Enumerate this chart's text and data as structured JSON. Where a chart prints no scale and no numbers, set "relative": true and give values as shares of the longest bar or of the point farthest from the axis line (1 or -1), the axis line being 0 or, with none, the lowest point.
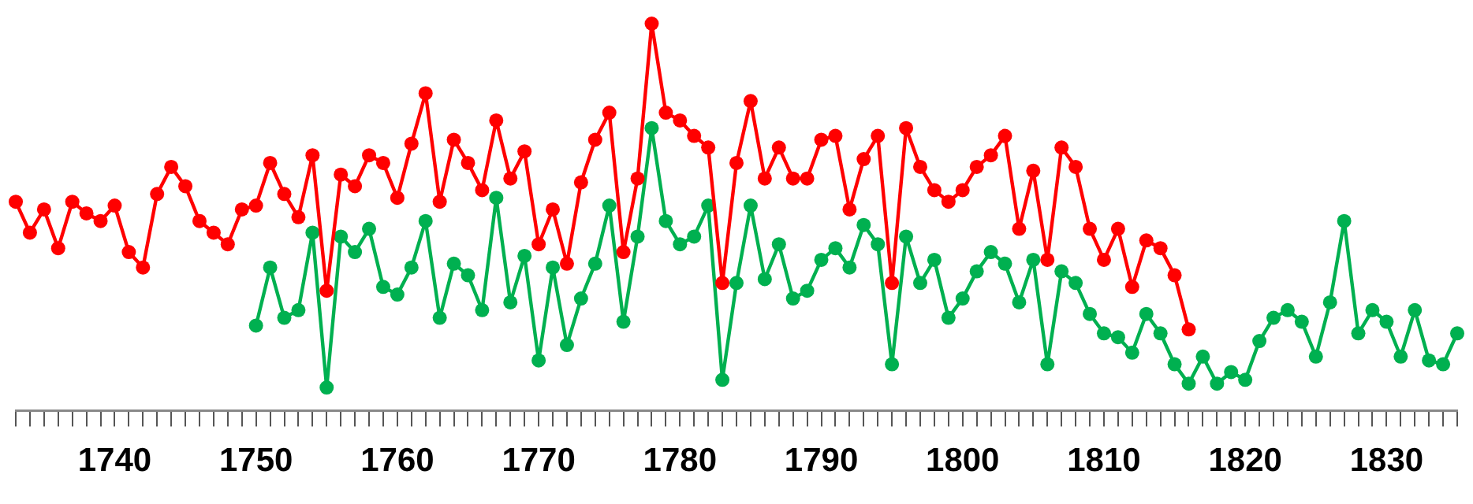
{
  "chart_data": {
    "type": "line",
    "relative": true,
    "marker": "circle",
    "grid": false,
    "legend": false,
    "xlim": [
      1733,
      1835
    ],
    "xticks": [
      {
        "value": 1733,
        "label": null
      },
      {
        "value": 1734,
        "label": null
      },
      {
        "value": 1735,
        "label": null
      },
      {
        "value": 1736,
        "label": null
      },
      {
        "value": 1737,
        "label": null
      },
      {
        "value": 1738,
        "label": null
      },
      {
        "value": 1739,
        "label": null
      },
      1740,
      {
        "value": 1741,
        "label": null
      },
      {
        "value": 1742,
        "label": null
      },
      {
        "value": 1743,
        "label": null
      },
      {
        "value": 1744,
        "label": null
      },
      {
        "value": 1745,
        "label": null
      },
      {
        "value": 1746,
        "label": null
      },
      {
        "value": 1747,
        "label": null
      },
      {
        "value": 1748,
        "label": null
      },
      {
        "value": 1749,
        "label": null
      },
      1750,
      {
        "value": 1751,
        "label": null
      },
      {
        "value": 1752,
        "label": null
      },
      {
        "value": 1753,
        "label": null
      },
      {
        "value": 1754,
        "label": null
      },
      {
        "value": 1755,
        "label": null
      },
      {
        "value": 1756,
        "label": null
      },
      {
        "value": 1757,
        "label": null
      },
      {
        "value": 1758,
        "label": null
      },
      {
        "value": 1759,
        "label": null
      },
      1760,
      {
        "value": 1761,
        "label": null
      },
      {
        "value": 1762,
        "label": null
      },
      {
        "value": 1763,
        "label": null
      },
      {
        "value": 1764,
        "label": null
      },
      {
        "value": 1765,
        "label": null
      },
      {
        "value": 1766,
        "label": null
      },
      {
        "value": 1767,
        "label": null
      },
      {
        "value": 1768,
        "label": null
      },
      {
        "value": 1769,
        "label": null
      },
      1770,
      {
        "value": 1771,
        "label": null
      },
      {
        "value": 1772,
        "label": null
      },
      {
        "value": 1773,
        "label": null
      },
      {
        "value": 1774,
        "label": null
      },
      {
        "value": 1775,
        "label": null
      },
      {
        "value": 1776,
        "label": null
      },
      {
        "value": 1777,
        "label": null
      },
      {
        "value": 1778,
        "label": null
      },
      {
        "value": 1779,
        "label": null
      },
      1780,
      {
        "value": 1781,
        "label": null
      },
      {
        "value": 1782,
        "label": null
      },
      {
        "value": 1783,
        "label": null
      },
      {
        "value": 1784,
        "label": null
      },
      {
        "value": 1785,
        "label": null
      },
      {
        "value": 1786,
        "label": null
      },
      {
        "value": 1787,
        "label": null
      },
      {
        "value": 1788,
        "label": null
      },
      {
        "value": 1789,
        "label": null
      },
      1790,
      {
        "value": 1791,
        "label": null
      },
      {
        "value": 1792,
        "label": null
      },
      {
        "value": 1793,
        "label": null
      },
      {
        "value": 1794,
        "label": null
      },
      {
        "value": 1795,
        "label": null
      },
      {
        "value": 1796,
        "label": null
      },
      {
        "value": 1797,
        "label": null
      },
      {
        "value": 1798,
        "label": null
      },
      {
        "value": 1799,
        "label": null
      },
      1800,
      {
        "value": 1801,
        "label": null
      },
      {
        "value": 1802,
        "label": null
      },
      {
        "value": 1803,
        "label": null
      },
      {
        "value": 1804,
        "label": null
      },
      {
        "value": 1805,
        "label": null
      },
      {
        "value": 1806,
        "label": null
      },
      {
        "value": 1807,
        "label": null
      },
      {
        "value": 1808,
        "label": null
      },
      {
        "value": 1809,
        "label": null
      },
      1810,
      {
        "value": 1811,
        "label": null
      },
      {
        "value": 1812,
        "label": null
      },
      {
        "value": 1813,
        "label": null
      },
      {
        "value": 1814,
        "label": null
      },
      {
        "value": 1815,
        "label": null
      },
      {
        "value": 1816,
        "label": null
      },
      {
        "value": 1817,
        "label": null
      },
      {
        "value": 1818,
        "label": null
      },
      {
        "value": 1819,
        "label": null
      },
      1820,
      {
        "value": 1821,
        "label": null
      },
      {
        "value": 1822,
        "label": null
      },
      {
        "value": 1823,
        "label": null
      },
      {
        "value": 1824,
        "label": null
      },
      {
        "value": 1825,
        "label": null
      },
      {
        "value": 1826,
        "label": null
      },
      {
        "value": 1827,
        "label": null
      },
      {
        "value": 1828,
        "label": null
      },
      {
        "value": 1829,
        "label": null
      },
      1830,
      {
        "value": 1831,
        "label": null
      },
      {
        "value": 1832,
        "label": null
      },
      {
        "value": 1833,
        "label": null
      },
      {
        "value": 1834,
        "label": null
      },
      {
        "value": 1835,
        "label": null
      }
    ],
    "x": [
      1733,
      1734,
      1735,
      1736,
      1737,
      1738,
      1739,
      1740,
      1741,
      1742,
      1743,
      1744,
      1745,
      1746,
      1747,
      1748,
      1749,
      1750,
      1751,
      1752,
      1753,
      1754,
      1755,
      1756,
      1757,
      1758,
      1759,
      1760,
      1761,
      1762,
      1763,
      1764,
      1765,
      1766,
      1767,
      1768,
      1769,
      1770,
      1771,
      1772,
      1773,
      1774,
      1775,
      1776,
      1777,
      1778,
      1779,
      1780,
      1781,
      1782,
      1783,
      1784,
      1785,
      1786,
      1787,
      1788,
      1789,
      1790,
      1791,
      1792,
      1793,
      1794,
      1795,
      1796,
      1797,
      1798,
      1799,
      1800,
      1801,
      1802,
      1803,
      1804,
      1805,
      1806,
      1807,
      1808,
      1809,
      1810,
      1811,
      1812,
      1813,
      1814,
      1815,
      1816,
      1817,
      1818,
      1819,
      1820,
      1821,
      1822,
      1823,
      1824,
      1825,
      1826,
      1827,
      1828,
      1829,
      1830,
      1831,
      1832,
      1833,
      1834,
      1835
    ],
    "series": [
      {
        "color": "#ff0000",
        "values": [
          0.54,
          0.46,
          0.52,
          0.42,
          0.54,
          0.51,
          0.49,
          0.53,
          0.41,
          0.37,
          0.56,
          0.63,
          0.58,
          0.49,
          0.46,
          0.43,
          0.52,
          0.53,
          0.64,
          0.56,
          0.5,
          0.66,
          0.31,
          0.61,
          0.58,
          0.66,
          0.64,
          0.55,
          0.69,
          0.82,
          0.54,
          0.7,
          0.64,
          0.57,
          0.75,
          0.6,
          0.67,
          0.43,
          0.52,
          0.38,
          0.59,
          0.7,
          0.77,
          0.41,
          0.6,
          1.0,
          0.77,
          0.75,
          0.71,
          0.68,
          0.33,
          0.64,
          0.8,
          0.6,
          0.68,
          0.6,
          0.6,
          0.7,
          0.71,
          0.52,
          0.65,
          0.71,
          0.33,
          0.73,
          0.63,
          0.57,
          0.54,
          0.57,
          0.63,
          0.66,
          0.71,
          0.47,
          0.62,
          0.39,
          0.68,
          0.63,
          0.47,
          0.39,
          0.47,
          0.32,
          0.44,
          0.42,
          0.35,
          0.21,
          null,
          null,
          null,
          null,
          null,
          null,
          null,
          null,
          null,
          null,
          null,
          null,
          null,
          null,
          null,
          null,
          null,
          null,
          null
        ]
      },
      {
        "color": "#00b050",
        "values": [
          null,
          null,
          null,
          null,
          null,
          null,
          null,
          null,
          null,
          null,
          null,
          null,
          null,
          null,
          null,
          null,
          null,
          0.22,
          0.37,
          0.24,
          0.26,
          0.46,
          0.06,
          0.45,
          0.41,
          0.47,
          0.32,
          0.3,
          0.37,
          0.49,
          0.24,
          0.38,
          0.35,
          0.26,
          0.55,
          0.28,
          0.4,
          0.13,
          0.37,
          0.17,
          0.29,
          0.38,
          0.53,
          0.23,
          0.45,
          0.73,
          0.49,
          0.43,
          0.45,
          0.53,
          0.08,
          0.33,
          0.53,
          0.34,
          0.43,
          0.29,
          0.31,
          0.39,
          0.42,
          0.37,
          0.48,
          0.43,
          0.12,
          0.45,
          0.33,
          0.39,
          0.24,
          0.29,
          0.36,
          0.41,
          0.38,
          0.28,
          0.39,
          0.12,
          0.36,
          0.33,
          0.25,
          0.2,
          0.19,
          0.15,
          0.25,
          0.2,
          0.12,
          0.07,
          0.14,
          0.07,
          0.1,
          0.08,
          0.18,
          0.24,
          0.26,
          0.23,
          0.14,
          0.28,
          0.49,
          0.2,
          0.26,
          0.23,
          0.14,
          0.26,
          0.13,
          0.12,
          0.2
        ]
      }
    ]
  }
}
